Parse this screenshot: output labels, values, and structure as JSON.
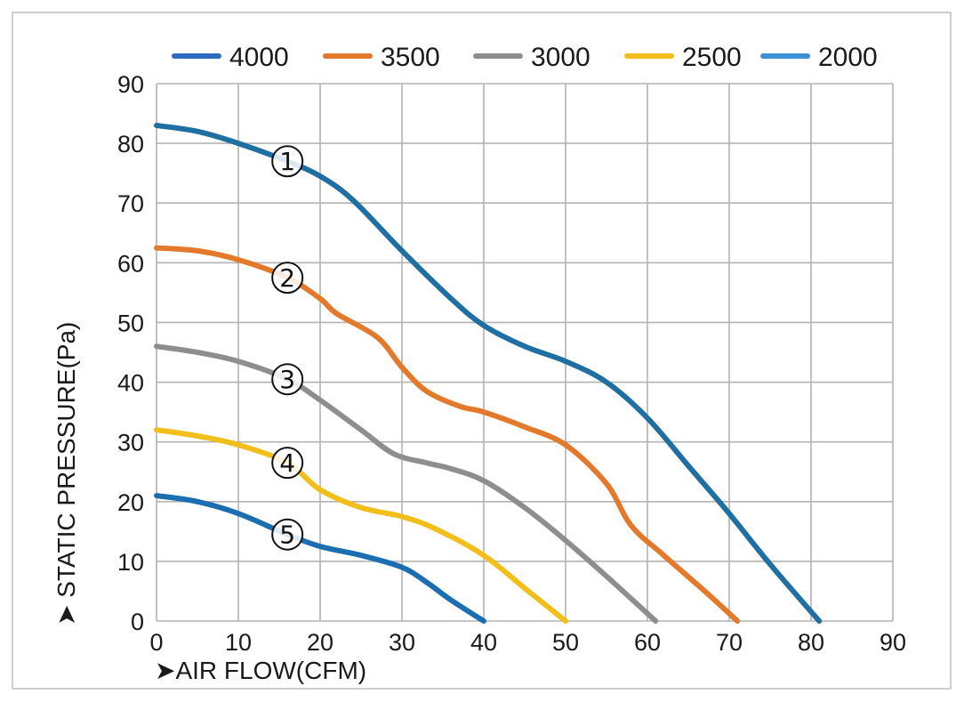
{
  "chart_data": {
    "type": "line",
    "xlabel": "AIR FLOW(CFM)",
    "ylabel": "STATIC PRESSURE(Pa)",
    "xlim": [
      0,
      90
    ],
    "ylim": [
      0,
      90
    ],
    "x_ticks": [
      0,
      10,
      20,
      30,
      40,
      50,
      60,
      70,
      80,
      90
    ],
    "y_ticks": [
      0,
      10,
      20,
      30,
      40,
      50,
      60,
      70,
      80,
      90
    ],
    "grid": true,
    "legend_position": "top",
    "series": [
      {
        "name": "4000",
        "color": "#1f6fa3",
        "legend_color": "#2d6bbf",
        "marker": "①",
        "x": [
          0,
          5,
          10,
          16,
          20,
          24,
          30,
          36,
          40,
          45,
          50,
          55,
          60,
          65,
          70,
          75,
          81
        ],
        "y": [
          83,
          82,
          80,
          77,
          74.5,
          70.5,
          62,
          54,
          49.5,
          46,
          43.5,
          40,
          34,
          26,
          18,
          9.5,
          0
        ]
      },
      {
        "name": "3500",
        "color": "#e2792b",
        "legend_color": "#e2792b",
        "marker": "②",
        "x": [
          0,
          5,
          10,
          16,
          20,
          22,
          27,
          30,
          33,
          37,
          40,
          45,
          50,
          55,
          58,
          62,
          67,
          71
        ],
        "y": [
          62.5,
          62,
          60.5,
          57.5,
          54,
          51.5,
          47.5,
          42.5,
          38.5,
          36,
          35,
          32.5,
          29.5,
          23,
          16,
          11,
          5,
          0
        ]
      },
      {
        "name": "3000",
        "color": "#8e8e8e",
        "legend_color": "#8e8e8e",
        "marker": "③",
        "x": [
          0,
          5,
          10,
          16,
          20,
          25,
          29,
          33,
          36,
          40,
          45,
          50,
          55,
          61
        ],
        "y": [
          46,
          45,
          43.5,
          40.5,
          37,
          32,
          28,
          26.5,
          25.5,
          23.5,
          19,
          13.5,
          7.5,
          0
        ]
      },
      {
        "name": "2500",
        "color": "#f2be1a",
        "legend_color": "#f2be1a",
        "marker": "④",
        "x": [
          0,
          5,
          10,
          16,
          20,
          25,
          30,
          34,
          40,
          45,
          50
        ],
        "y": [
          32,
          31,
          29.5,
          26.5,
          22,
          19,
          17.5,
          15.5,
          11,
          5.5,
          0
        ]
      },
      {
        "name": "2000",
        "color": "#1b6eb0",
        "legend_color": "#3d8fd8",
        "marker": "⑤",
        "x": [
          0,
          5,
          10,
          16,
          20,
          25,
          30,
          33,
          36,
          40
        ],
        "y": [
          21,
          20,
          18,
          14.5,
          12.5,
          11,
          9,
          6.5,
          3.5,
          0
        ]
      }
    ]
  }
}
